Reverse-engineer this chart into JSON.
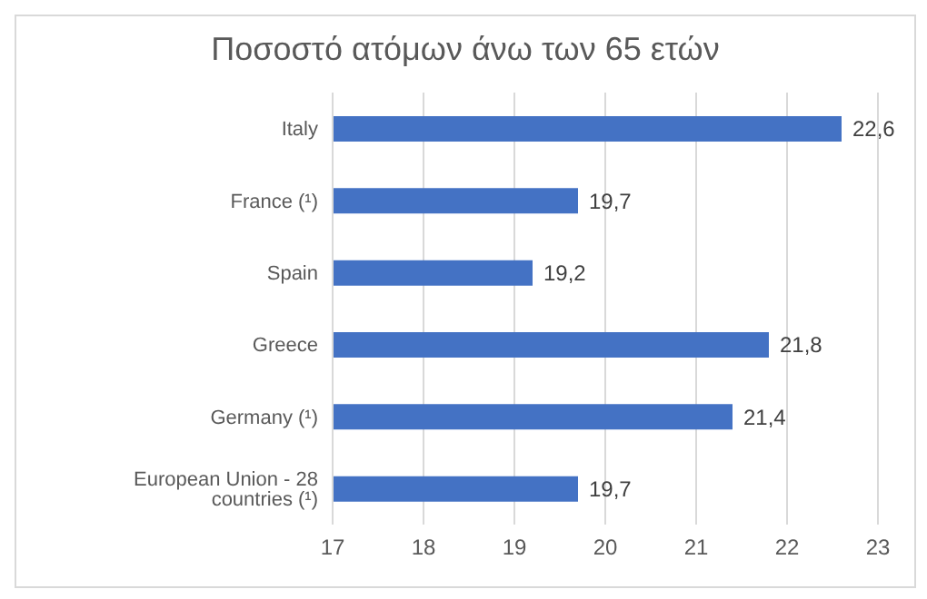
{
  "chart_data": {
    "type": "bar",
    "orientation": "horizontal",
    "title": "Ποσοστό ατόμων άνω των 65 ετών",
    "categories": [
      "Italy",
      "France (¹)",
      "Spain",
      "Greece",
      "Germany (¹)",
      "European Union - 28 countries (¹)"
    ],
    "values": [
      22.6,
      19.7,
      19.2,
      21.8,
      21.4,
      19.7
    ],
    "value_labels": [
      "22,6",
      "19,7",
      "19,2",
      "21,8",
      "21,4",
      "19,7"
    ],
    "color": "#4472c4",
    "xlim": [
      17,
      23
    ],
    "xticks": [
      17,
      18,
      19,
      20,
      21,
      22,
      23
    ],
    "grid": "x",
    "legend": false
  }
}
